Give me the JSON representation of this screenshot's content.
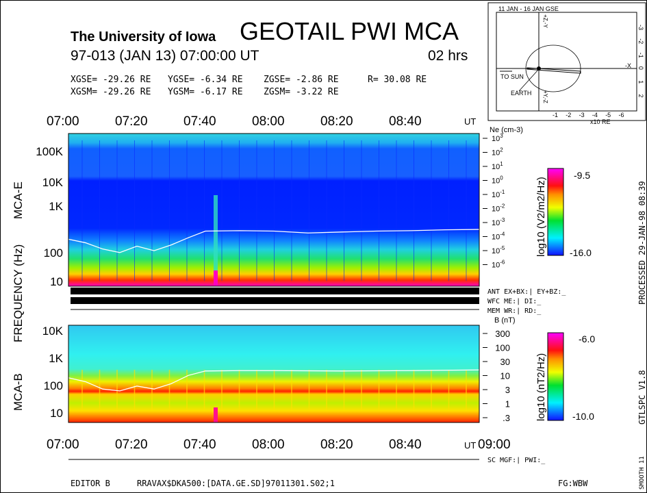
{
  "header": {
    "institution": "The University of Iowa",
    "title": "GEOTAIL PWI MCA",
    "date_line": "97-013 (JAN 13) 07:00:00 UT",
    "duration": "02 hrs",
    "gse": {
      "x": "XGSE= -29.26 RE",
      "y": "YGSE=  -6.34 RE",
      "z": "ZGSE=  -2.86 RE",
      "r": "R= 30.08 RE"
    },
    "gsm": {
      "x": "XGSM= -29.26 RE",
      "y": "YGSM=  -6.17 RE",
      "z": "ZGSM=  -3.22 RE"
    }
  },
  "orbit_plot": {
    "title": "11 JAN - 16 JAN  GSE",
    "x_ticks": [
      "-1",
      "-2",
      "-3",
      "-4",
      "-5",
      "-6"
    ],
    "x_unit": "x10 RE",
    "y_ticks": [
      "-3",
      "-2",
      "-1",
      "0",
      "1",
      "2"
    ],
    "top_axis_label": "+Z,-Y",
    "bottom_axis_label": "+Y,-Z",
    "neg_x_label": "-X",
    "sun_label": "TO SUN",
    "earth_label": "EARTH"
  },
  "chart_data": [
    {
      "type": "heatmap",
      "name_label": "MCA-E",
      "ylabel": "FREQUENCY (Hz)",
      "x_ticks": [
        "07:00",
        "07:20",
        "07:40",
        "08:00",
        "08:20",
        "08:40"
      ],
      "x_unit": "UT",
      "y_ticks": [
        "100K",
        "10K",
        "1K",
        "100",
        "10"
      ],
      "y_scale": "log",
      "right_axis_label": "Ne (cm-3)",
      "right_axis_ticks": [
        "10^3",
        "10^2",
        "10^1",
        "10^0",
        "10^-1",
        "10^-2",
        "10^-3",
        "10^-4",
        "10^-5",
        "10^-6"
      ],
      "colorbar_label": "log10 (V2/m2/Hz)",
      "colorbar_range": [
        -16.0,
        -9.5
      ],
      "colorbar_max_label": "-9.5",
      "colorbar_min_label": "-16.0",
      "overlay_line": {
        "name": "density",
        "color": "#ffffff",
        "x": [
          "07:00",
          "07:05",
          "07:10",
          "07:15",
          "07:20",
          "07:25",
          "07:30",
          "07:35",
          "07:40",
          "07:50",
          "08:00",
          "08:10",
          "08:20",
          "08:30",
          "08:40",
          "08:50",
          "09:00"
        ],
        "y_hz": [
          180,
          140,
          90,
          70,
          110,
          80,
          120,
          200,
          320,
          330,
          320,
          280,
          300,
          320,
          330,
          350,
          360
        ]
      }
    },
    {
      "type": "heatmap",
      "name_label": "MCA-B",
      "x_ticks": [
        "07:00",
        "07:20",
        "07:40",
        "08:00",
        "08:20",
        "08:40",
        "09:00"
      ],
      "x_unit": "UT",
      "y_ticks": [
        "10K",
        "1K",
        "100",
        "10"
      ],
      "y_scale": "log",
      "right_axis_label": "B (nT)",
      "right_axis_ticks": [
        "300",
        "100",
        "30",
        "10",
        "3",
        "1",
        ".3"
      ],
      "colorbar_label": "log10 (nT2/Hz)",
      "colorbar_range": [
        -10.0,
        -6.0
      ],
      "colorbar_max_label": "-6.0",
      "colorbar_min_label": "-10.0",
      "overlay_line": {
        "name": "cyclotron",
        "color": "#ffffff",
        "x": [
          "07:00",
          "07:05",
          "07:10",
          "07:15",
          "07:20",
          "07:25",
          "07:30",
          "07:35",
          "07:40",
          "07:50",
          "08:00",
          "08:20",
          "08:40",
          "09:00"
        ],
        "y_hz": [
          180,
          130,
          70,
          60,
          90,
          70,
          110,
          220,
          320,
          330,
          330,
          320,
          330,
          350
        ]
      }
    }
  ],
  "status": {
    "ant": "ANT EX+BX:|  EY+BZ:_",
    "wfc": "WFC ME:|     DI:_",
    "mem": "MEM WR:|     RD:_",
    "sc": "SC MGF:|  PWI:_"
  },
  "footer": {
    "editor": "EDITOR B",
    "file": "RRAVAX$DKA500:[DATA.GE.SD]97011301.S02;1",
    "fg": "FG:WBW"
  },
  "side": {
    "processed": "PROCESSED 29-JAN-98  08:39",
    "version": "GTLSPC  V1.8",
    "smooth": "SMOOTH 11"
  }
}
